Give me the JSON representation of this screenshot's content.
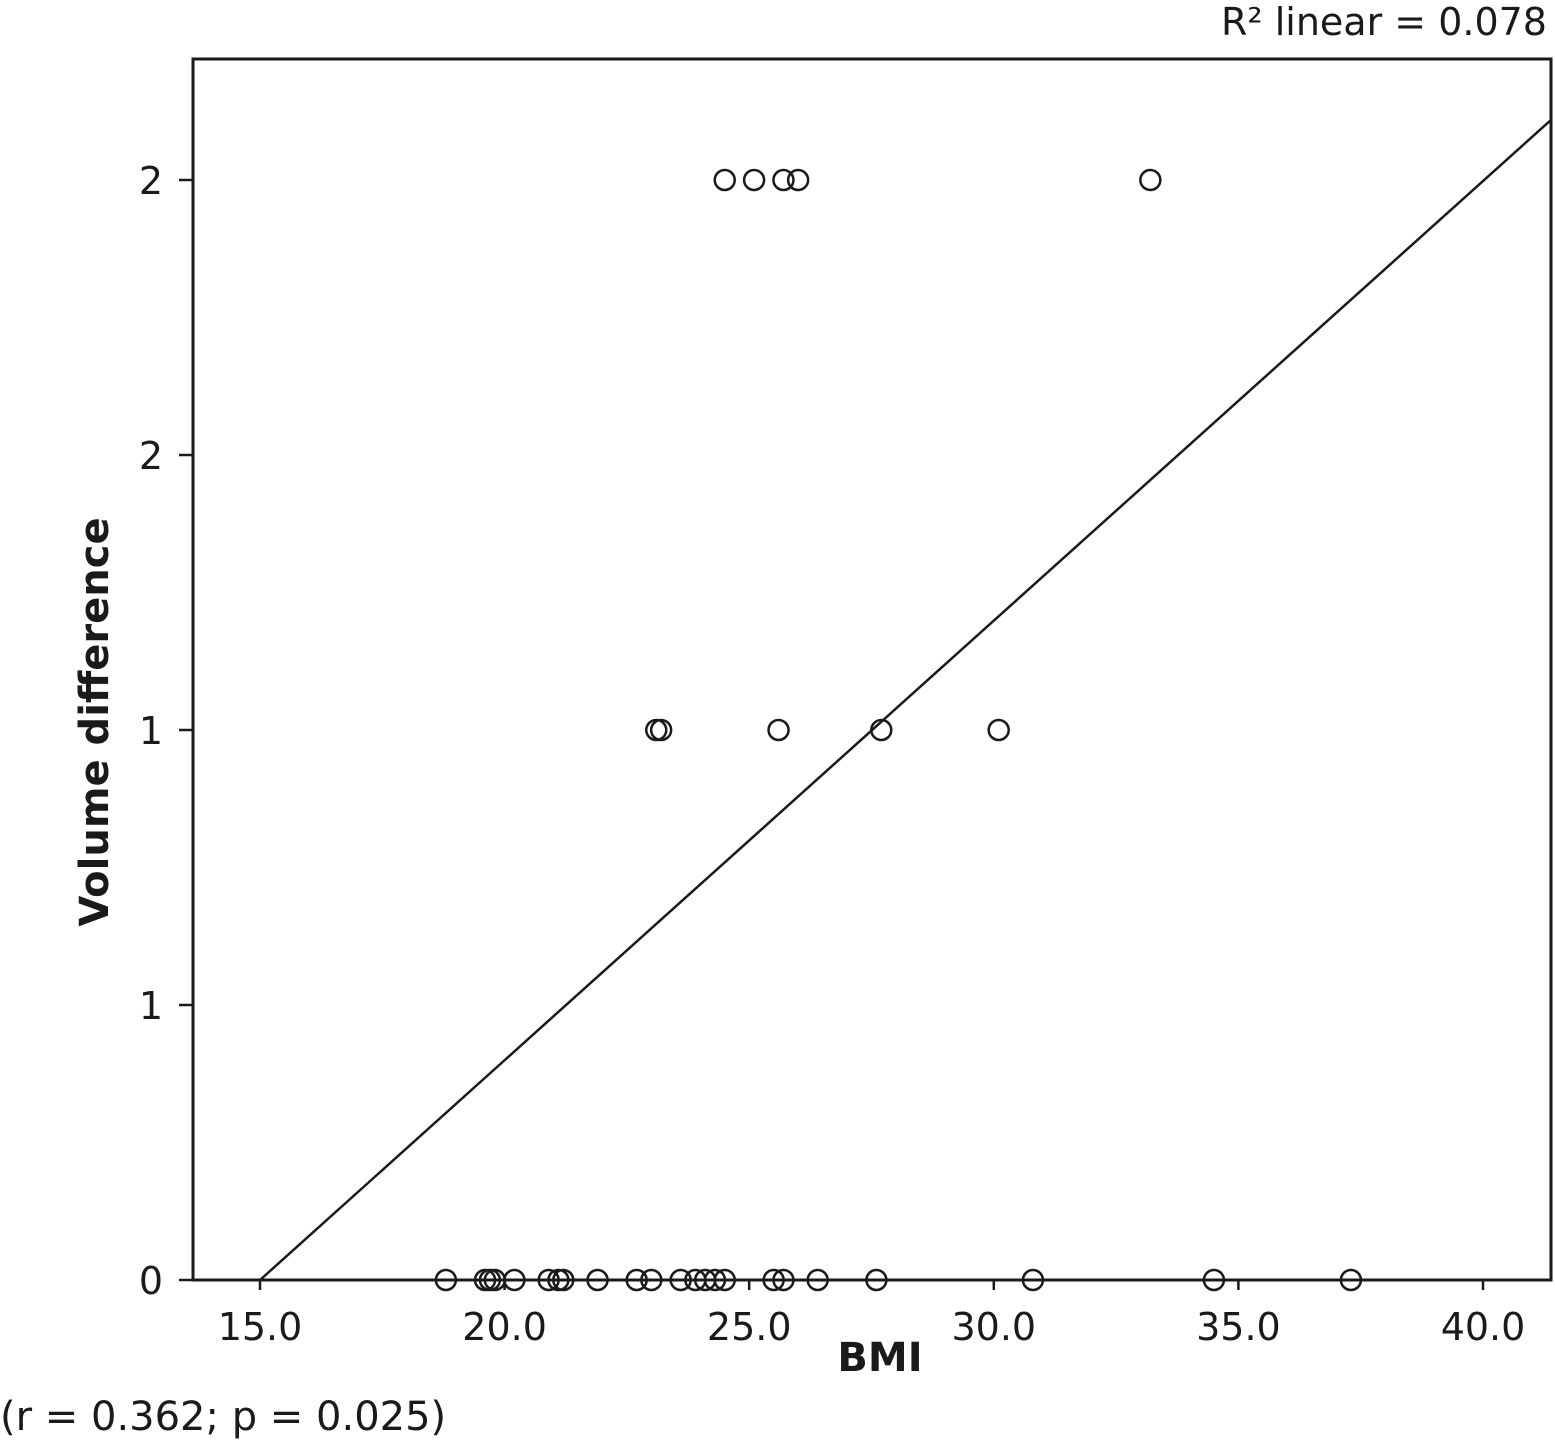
{
  "chart_data": {
    "type": "scatter",
    "xlabel": "BMI",
    "ylabel": "Volume difference",
    "xlim": [
      13.6,
      41.4
    ],
    "ylim": [
      0,
      2.22
    ],
    "x_ticks": [
      {
        "value": 15,
        "label": "15.0"
      },
      {
        "value": 20,
        "label": "20.0"
      },
      {
        "value": 25,
        "label": "25.0"
      },
      {
        "value": 30,
        "label": "30.0"
      },
      {
        "value": 35,
        "label": "35.0"
      },
      {
        "value": 40,
        "label": "40.0"
      }
    ],
    "y_ticks": [
      {
        "value": 0,
        "label": "0"
      },
      {
        "value": 0.5,
        "label": "1"
      },
      {
        "value": 1.0,
        "label": "1"
      },
      {
        "value": 1.5,
        "label": "2"
      },
      {
        "value": 2.0,
        "label": "2"
      }
    ],
    "points": [
      {
        "x": 18.8,
        "y": 0
      },
      {
        "x": 19.6,
        "y": 0
      },
      {
        "x": 19.7,
        "y": 0
      },
      {
        "x": 19.8,
        "y": 0
      },
      {
        "x": 20.2,
        "y": 0
      },
      {
        "x": 20.9,
        "y": 0
      },
      {
        "x": 21.1,
        "y": 0
      },
      {
        "x": 21.2,
        "y": 0
      },
      {
        "x": 21.9,
        "y": 0
      },
      {
        "x": 22.7,
        "y": 0
      },
      {
        "x": 23.0,
        "y": 0
      },
      {
        "x": 23.6,
        "y": 0
      },
      {
        "x": 23.9,
        "y": 0
      },
      {
        "x": 24.1,
        "y": 0
      },
      {
        "x": 24.3,
        "y": 0
      },
      {
        "x": 24.5,
        "y": 0
      },
      {
        "x": 25.5,
        "y": 0
      },
      {
        "x": 25.7,
        "y": 0
      },
      {
        "x": 26.4,
        "y": 0
      },
      {
        "x": 27.6,
        "y": 0
      },
      {
        "x": 30.8,
        "y": 0
      },
      {
        "x": 34.5,
        "y": 0
      },
      {
        "x": 37.3,
        "y": 0
      },
      {
        "x": 23.1,
        "y": 1.0
      },
      {
        "x": 23.2,
        "y": 1.0
      },
      {
        "x": 25.6,
        "y": 1.0
      },
      {
        "x": 27.7,
        "y": 1.0
      },
      {
        "x": 30.1,
        "y": 1.0
      },
      {
        "x": 24.5,
        "y": 2.0
      },
      {
        "x": 25.1,
        "y": 2.0
      },
      {
        "x": 25.7,
        "y": 2.0
      },
      {
        "x": 26.0,
        "y": 2.0
      },
      {
        "x": 33.2,
        "y": 2.0
      }
    ],
    "fit_line": {
      "x": [
        15.0,
        41.4
      ],
      "y": [
        0,
        2.11
      ]
    },
    "r2_label": "R² linear = 0.078",
    "annotation": "(r = 0.362; p = 0.025)",
    "grid": false,
    "marker": "open-circle"
  }
}
